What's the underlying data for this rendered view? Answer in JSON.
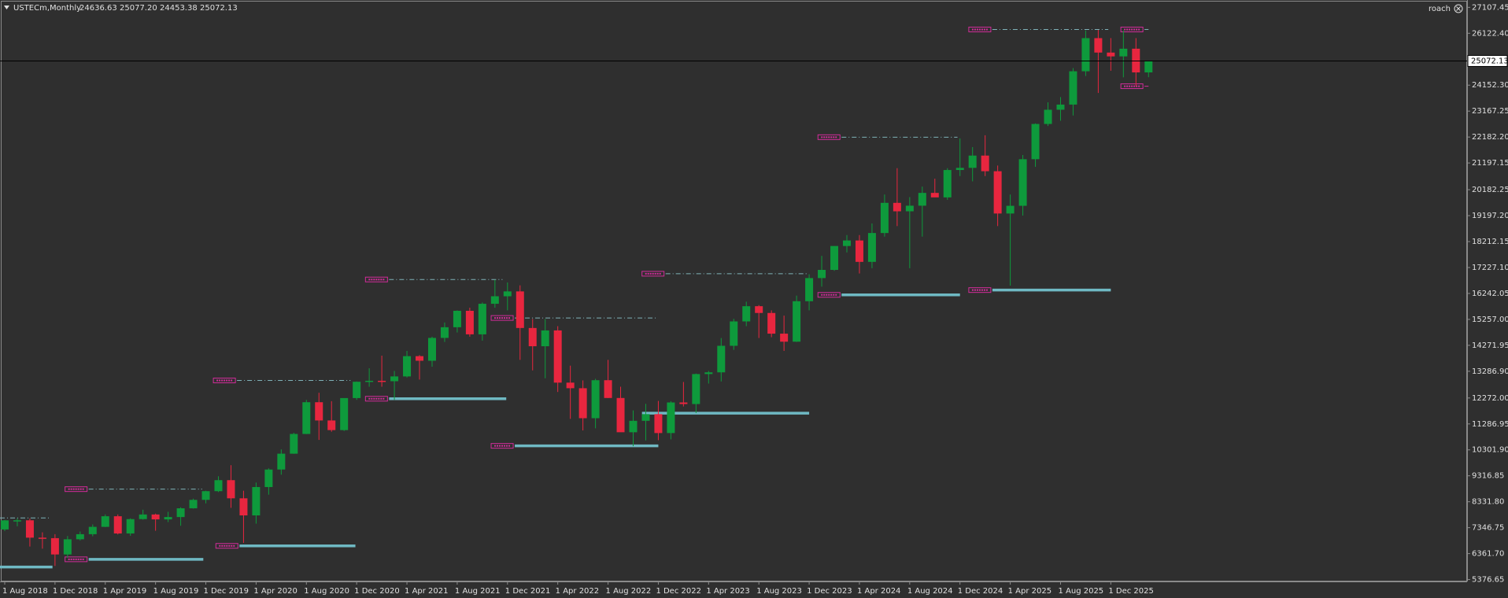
{
  "chart_data": {
    "type": "candlestick",
    "symbol": "USTECm,Monthly",
    "header_ohlc": [
      "24636.63",
      "25077.20",
      "24453.38",
      "25072.13"
    ],
    "account": "roach",
    "categories": [
      "1 Aug 2018",
      null,
      null,
      null,
      "1 Dec 2018",
      null,
      null,
      null,
      "1 Apr 2019",
      null,
      null,
      null,
      "1 Aug 2019",
      null,
      null,
      null,
      "1 Dec 2019",
      null,
      null,
      null,
      "1 Apr 2020",
      null,
      null,
      null,
      "1 Aug 2020",
      null,
      null,
      null,
      "1 Dec 2020",
      null,
      null,
      null,
      "1 Apr 2021",
      null,
      null,
      null,
      "1 Aug 2021",
      null,
      null,
      null,
      "1 Dec 2021",
      null,
      null,
      null,
      "1 Apr 2022",
      null,
      null,
      null,
      "1 Aug 2022",
      null,
      null,
      null,
      "1 Dec 2022",
      null,
      null,
      null,
      "1 Apr 2023",
      null,
      null,
      null,
      "1 Aug 2023",
      null,
      null,
      null,
      "1 Dec 2023",
      null,
      null,
      null,
      "1 Apr 2024",
      null,
      null,
      null,
      "1 Aug 2024",
      null,
      null,
      null,
      "1 Dec 2024",
      null,
      null,
      null,
      "1 Apr 2025",
      null,
      null,
      null,
      "1 Aug 2025",
      null,
      null,
      null,
      "1 Dec 2025",
      null,
      null,
      null
    ],
    "open": [
      7280,
      7625,
      7627,
      6967,
      6949,
      6330,
      6906,
      7099,
      7378,
      7781,
      7127,
      7672,
      7848,
      7662,
      7750,
      8083,
      8403,
      8733,
      9151,
      8462,
      7813,
      8890,
      9555,
      10157,
      10906,
      12111,
      11418,
      11052,
      12269,
      12888,
      12925,
      12909,
      13091,
      13861,
      13686,
      14554,
      14959,
      15583,
      14689,
      15850,
      16135,
      16320,
      14930,
      14237,
      14838,
      12855,
      12643,
      11504,
      12947,
      12272,
      10971,
      11405,
      11658,
      10940,
      12102,
      12042,
      13181,
      13246,
      14254,
      15180,
      15758,
      15501,
      14715,
      14410,
      15947,
      16826,
      17137,
      18044,
      18254,
      17441,
      18537,
      19683,
      19362,
      19575,
      20061,
      19890,
      20930,
      21012,
      21478,
      20884,
      19278,
      19571,
      21340,
      22679,
      23219,
      23415,
      24680,
      25938,
      25390,
      25245,
      25537,
      24636.63
    ],
    "high": [
      7640,
      7700,
      7700,
      7170,
      7100,
      7030,
      7200,
      7470,
      7850,
      7850,
      7700,
      8030,
      7880,
      7950,
      8120,
      8450,
      8750,
      9300,
      9720,
      8750,
      9060,
      9600,
      10320,
      10950,
      12200,
      12470,
      12150,
      12200,
      12900,
      13400,
      13880,
      13300,
      14060,
      13900,
      14600,
      15140,
      15600,
      15700,
      15900,
      16760,
      16660,
      16550,
      15270,
      15270,
      15000,
      13500,
      12940,
      13000,
      13720,
      12700,
      11800,
      12050,
      12160,
      12150,
      12880,
      13200,
      13300,
      14550,
      15280,
      15930,
      15800,
      15600,
      15400,
      16160,
      16970,
      17670,
      18040,
      18460,
      18460,
      18900,
      20000,
      21000,
      19900,
      20300,
      20600,
      21000,
      22130,
      21800,
      22250,
      21100,
      20000,
      21500,
      22700,
      23500,
      23700,
      24800,
      26230,
      26250,
      25940,
      26230,
      25940,
      25077.2
    ],
    "low": [
      7220,
      7400,
      6630,
      6550,
      5895,
      6200,
      6860,
      7020,
      7370,
      7090,
      7040,
      7650,
      7230,
      7560,
      7420,
      8070,
      8270,
      8700,
      8100,
      6770,
      7500,
      8600,
      9360,
      10150,
      10900,
      10680,
      10990,
      11020,
      12200,
      12700,
      12700,
      12200,
      13050,
      12970,
      13460,
      14400,
      14760,
      14600,
      14450,
      15700,
      15600,
      13720,
      13320,
      13020,
      12500,
      11480,
      11040,
      11120,
      12270,
      10980,
      10440,
      10660,
      10670,
      10700,
      11950,
      11700,
      12820,
      12900,
      14100,
      15000,
      14550,
      14580,
      14060,
      14400,
      15600,
      16500,
      17100,
      17800,
      17000,
      17200,
      18400,
      18800,
      17200,
      18400,
      19900,
      19800,
      20700,
      20500,
      20700,
      18800,
      16540,
      19200,
      21050,
      22600,
      22800,
      23000,
      24500,
      23857,
      24700,
      24450,
      24113,
      24453.38
    ],
    "close": [
      7625,
      7627,
      6967,
      6949,
      6330,
      6906,
      7099,
      7378,
      7781,
      7127,
      7672,
      7848,
      7662,
      7750,
      8083,
      8403,
      8733,
      9151,
      8462,
      7813,
      8890,
      9555,
      10157,
      10906,
      12111,
      11418,
      11052,
      12269,
      12888,
      12925,
      12909,
      13091,
      13861,
      13686,
      14554,
      14959,
      15583,
      14689,
      15850,
      16135,
      16320,
      14930,
      14237,
      14838,
      12855,
      12643,
      11504,
      12947,
      12272,
      10971,
      11405,
      11658,
      10940,
      12102,
      12042,
      13181,
      13246,
      14254,
      15180,
      15758,
      15501,
      14715,
      14410,
      15947,
      16826,
      17137,
      18044,
      18254,
      17441,
      18537,
      19683,
      19362,
      19575,
      20061,
      19890,
      20930,
      21012,
      21478,
      20884,
      19278,
      19571,
      21340,
      22679,
      23219,
      23415,
      24680,
      25938,
      25390,
      25245,
      25537,
      24636.63,
      25072.13
    ],
    "up_color": "#0e9a3c",
    "down_color": "#e8263f",
    "ylim": [
      5303.6,
      27326.6
    ],
    "yticks": [
      {
        "value": 27107.45,
        "label": "27107.45"
      },
      {
        "value": 26122.4,
        "label": "26122.40"
      },
      {
        "value": 24152.3,
        "label": "24152.30"
      },
      {
        "value": 23167.25,
        "label": "23167.25"
      },
      {
        "value": 22182.2,
        "label": "22182.20"
      },
      {
        "value": 21197.15,
        "label": "21197.15"
      },
      {
        "value": 20182.25,
        "label": "20182.25"
      },
      {
        "value": 19197.2,
        "label": "19197.20"
      },
      {
        "value": 18212.15,
        "label": "18212.15"
      },
      {
        "value": 17227.1,
        "label": "17227.10"
      },
      {
        "value": 16242.05,
        "label": "16242.05"
      },
      {
        "value": 15257,
        "label": "15257.00"
      },
      {
        "value": 14271.95,
        "label": "14271.95"
      },
      {
        "value": 13286.9,
        "label": "13286.90"
      },
      {
        "value": 12272,
        "label": "12272.00"
      },
      {
        "value": 11286.95,
        "label": "11286.95"
      },
      {
        "value": 10301.9,
        "label": "10301.90"
      },
      {
        "value": 9316.85,
        "label": "9316.85"
      },
      {
        "value": 8331.8,
        "label": "8331.80"
      },
      {
        "value": 7346.75,
        "label": "7346.75"
      },
      {
        "value": 6361.7,
        "label": "6361.70"
      },
      {
        "value": 5376.65,
        "label": "5376.65"
      }
    ],
    "current_price": {
      "value": 25072.13,
      "label": "25072.13"
    },
    "levels": [
      {
        "value": 8810,
        "kind": "resistance"
      },
      {
        "value": 12937,
        "kind": "resistance"
      },
      {
        "value": 16772,
        "kind": "resistance"
      },
      {
        "value": 15311,
        "kind": "resistance"
      },
      {
        "value": 16991,
        "kind": "resistance"
      },
      {
        "value": 22177,
        "kind": "resistance"
      },
      {
        "value": 26267,
        "kind": "resistance"
      },
      {
        "value": 26267,
        "kind": "resistance"
      },
      {
        "value": 7715,
        "kind": "resistance"
      },
      {
        "value": 5852,
        "kind": "support"
      },
      {
        "value": 6145,
        "kind": "support"
      },
      {
        "value": 6656,
        "kind": "support"
      },
      {
        "value": 12244,
        "kind": "support"
      },
      {
        "value": 10454,
        "kind": "support"
      },
      {
        "value": 11696,
        "kind": "support"
      },
      {
        "value": 16188,
        "kind": "support"
      },
      {
        "value": 16370,
        "kind": "support"
      },
      {
        "value": 24112,
        "kind": "support"
      }
    ]
  }
}
